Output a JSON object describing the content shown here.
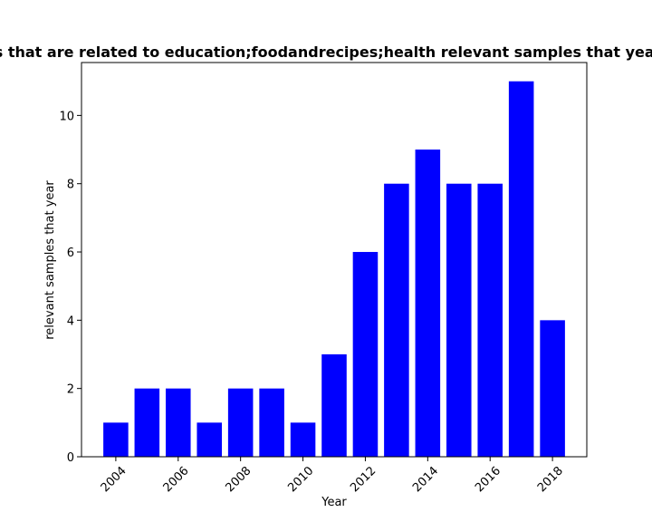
{
  "chart_data": {
    "type": "bar",
    "title": "Number of papers that are related to education;foodandrecipes;health relevant samples that year in private dataset",
    "xlabel": "Year",
    "ylabel": "relevant samples that year",
    "x": [
      2004,
      2005,
      2006,
      2007,
      2008,
      2009,
      2010,
      2011,
      2012,
      2013,
      2014,
      2015,
      2016,
      2017,
      2018
    ],
    "values": [
      1,
      2,
      2,
      1,
      2,
      2,
      1,
      3,
      6,
      8,
      9,
      8,
      8,
      11,
      4
    ],
    "xticks": [
      2004,
      2006,
      2008,
      2010,
      2012,
      2014,
      2016,
      2018
    ],
    "yticks": [
      0,
      2,
      4,
      6,
      8,
      10
    ],
    "xlim": [
      2002.9,
      2019.1
    ],
    "ylim": [
      0,
      11.55
    ],
    "bar_color": "#0000ff",
    "grid": false,
    "legend": "none"
  }
}
